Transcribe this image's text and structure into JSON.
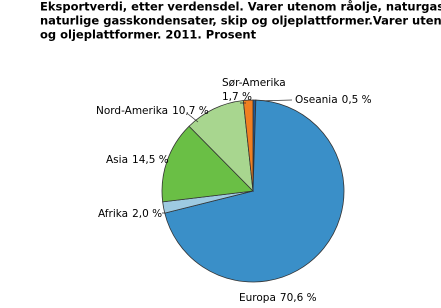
{
  "chart_data": {
    "type": "pie",
    "title": [
      "Eksportverdi, etter verdensdel. Varer utenom råolje, naturgass,",
      "naturlige gasskondensater, skip og oljeplattformer.Varer utenom skip",
      "og oljeplattformer. 2011. Prosent"
    ],
    "categories": [
      "Oseania",
      "Europa",
      "Afrika",
      "Asia",
      "Nord-Amerika",
      "Sør-Amerika"
    ],
    "values": [
      0.5,
      70.6,
      2.0,
      14.5,
      10.7,
      1.7
    ],
    "value_labels": [
      "0,5 %",
      "70,6 %",
      "2,0  %",
      "14,5 %",
      "10,7 %",
      "1,7 %"
    ],
    "colors": [
      "#1f5a96",
      "#3a8fc8",
      "#9ecae1",
      "#6abf45",
      "#a8d68f",
      "#f07f21"
    ]
  }
}
